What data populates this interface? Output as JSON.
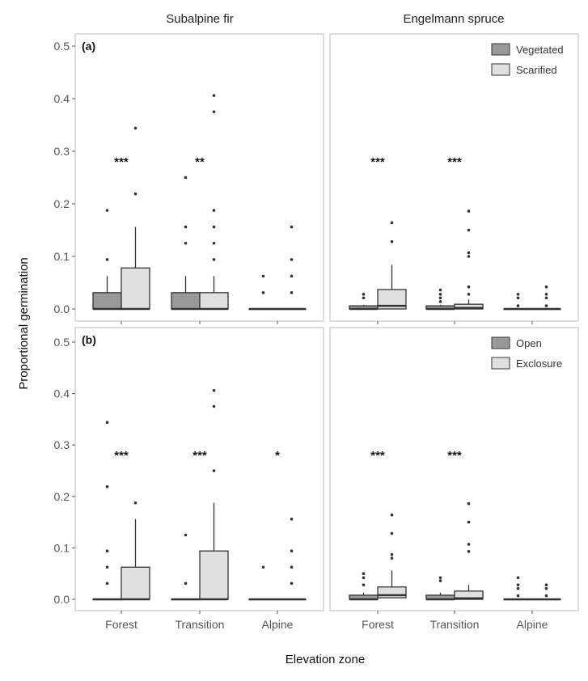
{
  "chart_data": {
    "type": "boxplot",
    "ylabel": "Proportional germination",
    "xlabel": "Elevation zone",
    "ylim": [
      0,
      0.5
    ],
    "yticks": [
      "0.0",
      "0.1",
      "0.2",
      "0.3",
      "0.4",
      "0.5"
    ],
    "grid": false,
    "categories": [
      "Forest",
      "Transition",
      "Alpine"
    ],
    "columns": [
      "Subalpine fir",
      "Engelmann spruce"
    ],
    "colors": {
      "dark": "#999999",
      "light": "#e0e0e0",
      "outline": "#333333"
    },
    "rows": [
      {
        "label": "(a)",
        "legend": {
          "position": "top-right",
          "entries": [
            "Vegetated",
            "Scarified"
          ]
        },
        "panels": [
          {
            "species": "Subalpine fir",
            "significance": [
              "***",
              "**",
              ""
            ],
            "boxes": [
              [
                {
                  "q1": 0,
                  "med": 0,
                  "q3": 0.031,
                  "lo": 0,
                  "hi": 0.0625,
                  "out": [
                    0.094,
                    0.1875
                  ]
                },
                {
                  "q1": 0,
                  "med": 0,
                  "q3": 0.078,
                  "lo": 0,
                  "hi": 0.156,
                  "out": [
                    0.219,
                    0.344
                  ]
                }
              ],
              [
                {
                  "q1": 0,
                  "med": 0,
                  "q3": 0.031,
                  "lo": 0,
                  "hi": 0.0625,
                  "out": [
                    0.125,
                    0.156,
                    0.25
                  ]
                },
                {
                  "q1": 0,
                  "med": 0,
                  "q3": 0.031,
                  "lo": 0,
                  "hi": 0.0625,
                  "out": [
                    0.094,
                    0.125,
                    0.156,
                    0.1875,
                    0.375,
                    0.406
                  ]
                }
              ],
              [
                {
                  "q1": 0,
                  "med": 0,
                  "q3": 0,
                  "lo": 0,
                  "hi": 0,
                  "out": [
                    0.031,
                    0.0625
                  ]
                },
                {
                  "q1": 0,
                  "med": 0,
                  "q3": 0,
                  "lo": 0,
                  "hi": 0,
                  "out": [
                    0.031,
                    0.0625,
                    0.094,
                    0.156
                  ]
                }
              ]
            ]
          },
          {
            "species": "Engelmann spruce",
            "significance": [
              "***",
              "***",
              ""
            ],
            "boxes": [
              [
                {
                  "q1": 0,
                  "med": 0,
                  "q3": 0.006,
                  "lo": 0,
                  "hi": 0.008,
                  "out": [
                    0.021,
                    0.028
                  ]
                },
                {
                  "q1": 0,
                  "med": 0.006,
                  "q3": 0.037,
                  "lo": 0,
                  "hi": 0.084,
                  "out": [
                    0.128,
                    0.164
                  ]
                }
              ],
              [
                {
                  "q1": 0,
                  "med": 0,
                  "q3": 0.006,
                  "lo": 0,
                  "hi": 0.008,
                  "out": [
                    0.014,
                    0.021,
                    0.028,
                    0.036
                  ]
                },
                {
                  "q1": 0,
                  "med": 0.002,
                  "q3": 0.009,
                  "lo": 0,
                  "hi": 0.018,
                  "out": [
                    0.028,
                    0.042,
                    0.1,
                    0.107,
                    0.15,
                    0.186
                  ]
                }
              ],
              [
                {
                  "q1": 0,
                  "med": 0,
                  "q3": 0,
                  "lo": 0,
                  "hi": 0,
                  "out": [
                    0.006,
                    0.021,
                    0.028
                  ]
                },
                {
                  "q1": 0,
                  "med": 0,
                  "q3": 0,
                  "lo": 0,
                  "hi": 0,
                  "out": [
                    0.006,
                    0.021,
                    0.028,
                    0.042
                  ]
                }
              ]
            ]
          }
        ]
      },
      {
        "label": "(b)",
        "legend": {
          "position": "top-right",
          "entries": [
            "Open",
            "Exclosure"
          ]
        },
        "panels": [
          {
            "species": "Subalpine fir",
            "significance": [
              "***",
              "***",
              "*"
            ],
            "boxes": [
              [
                {
                  "q1": 0,
                  "med": 0,
                  "q3": 0,
                  "lo": 0,
                  "hi": 0,
                  "out": [
                    0.031,
                    0.0625,
                    0.094,
                    0.219,
                    0.344
                  ]
                },
                {
                  "q1": 0,
                  "med": 0,
                  "q3": 0.0625,
                  "lo": 0,
                  "hi": 0.156,
                  "out": [
                    0.1875
                  ]
                }
              ],
              [
                {
                  "q1": 0,
                  "med": 0,
                  "q3": 0,
                  "lo": 0,
                  "hi": 0,
                  "out": [
                    0.031,
                    0.125
                  ]
                },
                {
                  "q1": 0,
                  "med": 0,
                  "q3": 0.094,
                  "lo": 0,
                  "hi": 0.1875,
                  "out": [
                    0.25,
                    0.375,
                    0.406
                  ]
                }
              ],
              [
                {
                  "q1": 0,
                  "med": 0,
                  "q3": 0,
                  "lo": 0,
                  "hi": 0,
                  "out": [
                    0.0625
                  ]
                },
                {
                  "q1": 0,
                  "med": 0,
                  "q3": 0,
                  "lo": 0,
                  "hi": 0,
                  "out": [
                    0.031,
                    0.0625,
                    0.094,
                    0.156
                  ]
                }
              ]
            ]
          },
          {
            "species": "Engelmann spruce",
            "significance": [
              "***",
              "***",
              ""
            ],
            "boxes": [
              [
                {
                  "q1": 0,
                  "med": 0,
                  "q3": 0.008,
                  "lo": 0,
                  "hi": 0.013,
                  "out": [
                    0.028,
                    0.042,
                    0.05
                  ]
                },
                {
                  "q1": 0.003,
                  "med": 0.008,
                  "q3": 0.024,
                  "lo": 0.003,
                  "hi": 0.056,
                  "out": [
                    0.08,
                    0.087,
                    0.128,
                    0.164
                  ]
                }
              ],
              [
                {
                  "q1": 0,
                  "med": 0,
                  "q3": 0.008,
                  "lo": 0,
                  "hi": 0.013,
                  "out": [
                    0.036,
                    0.042
                  ]
                },
                {
                  "q1": 0,
                  "med": 0.002,
                  "q3": 0.016,
                  "lo": 0,
                  "hi": 0.028,
                  "out": [
                    0.093,
                    0.107,
                    0.15,
                    0.186
                  ]
                }
              ],
              [
                {
                  "q1": 0,
                  "med": 0,
                  "q3": 0,
                  "lo": 0,
                  "hi": 0,
                  "out": [
                    0.007,
                    0.021,
                    0.028,
                    0.042
                  ]
                },
                {
                  "q1": 0,
                  "med": 0,
                  "q3": 0,
                  "lo": 0,
                  "hi": 0,
                  "out": [
                    0.007,
                    0.021,
                    0.028
                  ]
                }
              ]
            ]
          }
        ]
      }
    ]
  }
}
